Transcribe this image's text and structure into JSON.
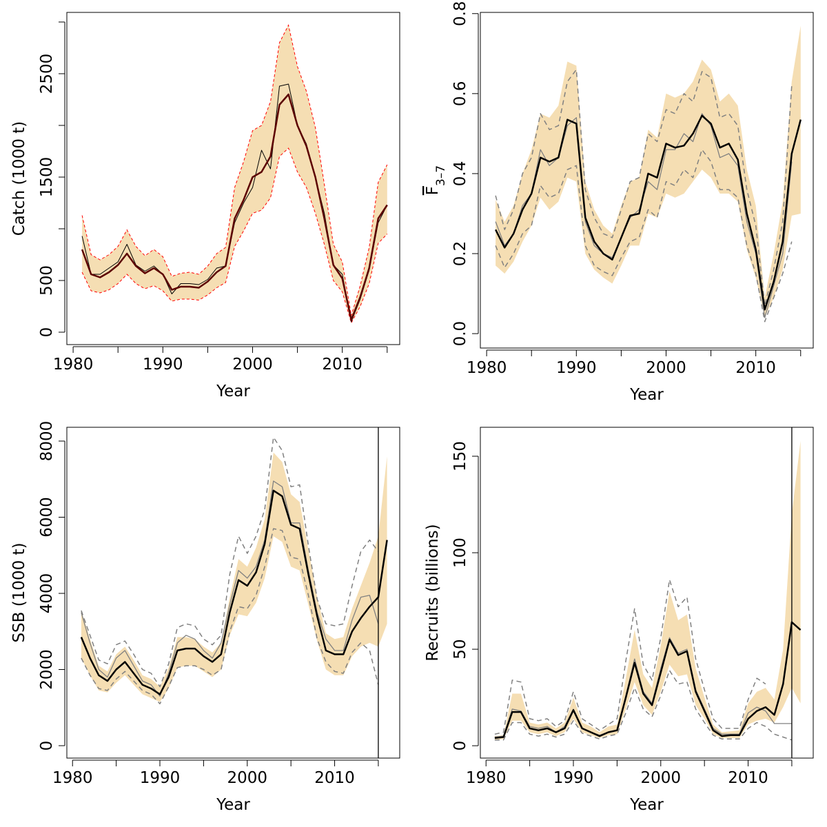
{
  "chart_data": [
    {
      "type": "line",
      "xlabel": "Year",
      "ylabel": "Catch (1000 t)",
      "x": [
        1981,
        1982,
        1983,
        1984,
        1985,
        1986,
        1987,
        1988,
        1989,
        1990,
        1991,
        1992,
        1993,
        1994,
        1995,
        1996,
        1997,
        1998,
        1999,
        2000,
        2001,
        2002,
        2003,
        2004,
        2005,
        2006,
        2007,
        2008,
        2009,
        2010,
        2011,
        2012,
        2013,
        2014,
        2015
      ],
      "xlim": [
        1979.3,
        2016.4
      ],
      "ylim": [
        -120,
        3093
      ],
      "xticks": [
        1980,
        1990,
        2000,
        2010
      ],
      "xminor": [
        1985,
        1995,
        2005,
        2015
      ],
      "yticks": [
        0,
        500,
        1500,
        2500
      ],
      "yminor": [
        1000,
        2000,
        3000
      ],
      "band": {
        "color": "#f5deb3",
        "border": "#ff0000",
        "upper": [
          1130,
          750,
          700,
          750,
          830,
          990,
          830,
          740,
          800,
          730,
          540,
          570,
          580,
          560,
          640,
          760,
          820,
          1400,
          1650,
          1950,
          2000,
          2230,
          2800,
          2970,
          2570,
          2330,
          1980,
          1430,
          850,
          680,
          160,
          450,
          820,
          1450,
          1620
        ],
        "lower": [
          580,
          400,
          380,
          410,
          470,
          560,
          470,
          420,
          450,
          400,
          300,
          320,
          320,
          310,
          360,
          430,
          480,
          830,
          980,
          1150,
          1180,
          1300,
          1700,
          1780,
          1550,
          1400,
          1150,
          850,
          500,
          390,
          90,
          250,
          470,
          860,
          950
        ]
      },
      "series": [
        {
          "color": "#000000",
          "width": 1,
          "values": [
            930,
            560,
            560,
            620,
            680,
            850,
            650,
            590,
            640,
            560,
            370,
            470,
            470,
            460,
            510,
            620,
            640,
            1060,
            1250,
            1400,
            1760,
            1580,
            2380,
            2400,
            2000,
            1820,
            1500,
            1150,
            650,
            560,
            100,
            320,
            600,
            1060,
            1230
          ]
        },
        {
          "color": "#5c0000",
          "width": 2.5,
          "values": [
            800,
            560,
            530,
            580,
            650,
            760,
            640,
            570,
            620,
            560,
            410,
            440,
            440,
            430,
            490,
            580,
            640,
            1100,
            1280,
            1500,
            1550,
            1700,
            2200,
            2300,
            2000,
            1800,
            1500,
            1100,
            650,
            520,
            120,
            340,
            620,
            1100,
            1230
          ]
        }
      ]
    },
    {
      "type": "line",
      "xlabel": "Year",
      "ylabel": {
        "text": "F",
        "sub": "3–7"
      },
      "x": [
        1981,
        1982,
        1983,
        1984,
        1985,
        1986,
        1987,
        1988,
        1989,
        1990,
        1991,
        1992,
        1993,
        1994,
        1995,
        1996,
        1997,
        1998,
        1999,
        2000,
        2001,
        2002,
        2003,
        2004,
        2005,
        2006,
        2007,
        2008,
        2009,
        2010,
        2011,
        2012,
        2013,
        2014,
        2015
      ],
      "xlim": [
        1979.3,
        2016.4
      ],
      "ylim": [
        -0.036,
        0.803
      ],
      "xticks": [
        1980,
        1990,
        2000,
        2010
      ],
      "xminor": [
        1985,
        1995,
        2005,
        2015
      ],
      "yticks": [
        {
          "value": 0,
          "label": "0.0"
        },
        0.2,
        0.4,
        0.6,
        0.8
      ],
      "band": {
        "color": "#f5deb3",
        "upper": [
          0.335,
          0.28,
          0.32,
          0.4,
          0.46,
          0.55,
          0.54,
          0.57,
          0.68,
          0.67,
          0.38,
          0.31,
          0.27,
          0.25,
          0.32,
          0.38,
          0.39,
          0.51,
          0.49,
          0.6,
          0.59,
          0.6,
          0.63,
          0.685,
          0.66,
          0.58,
          0.6,
          0.57,
          0.41,
          0.32,
          0.09,
          0.2,
          0.33,
          0.63,
          0.77
        ],
        "lower": [
          0.17,
          0.15,
          0.18,
          0.23,
          0.27,
          0.34,
          0.31,
          0.33,
          0.39,
          0.38,
          0.2,
          0.16,
          0.14,
          0.125,
          0.17,
          0.22,
          0.22,
          0.3,
          0.29,
          0.35,
          0.34,
          0.35,
          0.38,
          0.41,
          0.39,
          0.35,
          0.35,
          0.33,
          0.21,
          0.14,
          0.04,
          0.09,
          0.16,
          0.295,
          0.3
        ]
      },
      "series": [
        {
          "color": "#808080",
          "width": 1.5,
          "dash": true,
          "values": [
            0.345,
            0.26,
            0.31,
            0.4,
            0.44,
            0.55,
            0.51,
            0.52,
            0.63,
            0.66,
            0.36,
            0.29,
            0.25,
            0.24,
            0.31,
            0.38,
            0.39,
            0.5,
            0.48,
            0.56,
            0.55,
            0.6,
            0.58,
            0.655,
            0.64,
            0.54,
            0.55,
            0.52,
            0.36,
            0.27,
            0.07,
            0.16,
            0.28,
            0.62,
            null
          ]
        },
        {
          "color": "#808080",
          "width": 1.5,
          "dash": true,
          "values": [
            0.22,
            0.165,
            0.2,
            0.25,
            0.27,
            0.37,
            0.34,
            0.35,
            0.41,
            0.42,
            0.22,
            0.17,
            0.155,
            0.145,
            0.19,
            0.23,
            0.24,
            0.31,
            0.29,
            0.38,
            0.37,
            0.41,
            0.39,
            0.46,
            0.43,
            0.36,
            0.36,
            0.34,
            0.22,
            0.15,
            0.03,
            0.09,
            0.15,
            0.23,
            null
          ]
        },
        {
          "color": "#808080",
          "width": 1.3,
          "values": [
            0.28,
            0.22,
            0.25,
            0.32,
            0.35,
            0.46,
            0.42,
            0.44,
            0.52,
            0.54,
            0.28,
            0.22,
            0.2,
            0.19,
            0.24,
            0.29,
            0.31,
            0.38,
            0.36,
            0.46,
            0.46,
            0.5,
            0.48,
            0.55,
            0.52,
            0.44,
            0.45,
            0.42,
            0.28,
            0.2,
            0.04,
            0.12,
            0.2,
            0.43,
            null
          ]
        },
        {
          "color": "#000000",
          "width": 2.5,
          "values": [
            0.26,
            0.215,
            0.25,
            0.31,
            0.35,
            0.44,
            0.43,
            0.44,
            0.535,
            0.525,
            0.29,
            0.23,
            0.2,
            0.185,
            0.24,
            0.295,
            0.3,
            0.4,
            0.39,
            0.475,
            0.465,
            0.47,
            0.5,
            0.545,
            0.525,
            0.465,
            0.475,
            0.435,
            0.3,
            0.21,
            0.06,
            0.13,
            0.23,
            0.45,
            0.535
          ]
        }
      ]
    },
    {
      "type": "line",
      "xlabel": "Year",
      "ylabel": "SSB (1000 t)",
      "x": [
        1981,
        1982,
        1983,
        1984,
        1985,
        1986,
        1987,
        1988,
        1989,
        1990,
        1991,
        1992,
        1993,
        1994,
        1995,
        1996,
        1997,
        1998,
        1999,
        2000,
        2001,
        2002,
        2003,
        2004,
        2005,
        2006,
        2007,
        2008,
        2009,
        2010,
        2011,
        2012,
        2013,
        2014,
        2015,
        2016
      ],
      "xlim": [
        1979.35,
        2017.45
      ],
      "ylim": [
        -326,
        8362
      ],
      "xticks": [
        1980,
        1990,
        2000,
        2010
      ],
      "xminor": [
        1985,
        1995,
        2005,
        2015
      ],
      "yticks": [
        0,
        2000,
        4000,
        6000,
        8000
      ],
      "vline": 2015,
      "band": {
        "color": "#f5deb3",
        "upper": [
          3550,
          2800,
          2100,
          1950,
          2400,
          2600,
          2250,
          1850,
          1750,
          1550,
          2050,
          2850,
          2850,
          2800,
          2600,
          2450,
          2700,
          3900,
          4900,
          4700,
          5200,
          5950,
          7700,
          7450,
          6600,
          6400,
          5150,
          3900,
          2950,
          2800,
          2850,
          3600,
          4200,
          4800,
          5500,
          7600
        ],
        "lower": [
          2300,
          1850,
          1450,
          1400,
          1650,
          1850,
          1600,
          1350,
          1250,
          1150,
          1500,
          2050,
          2100,
          2100,
          1950,
          1800,
          2000,
          2900,
          3450,
          3400,
          3750,
          4400,
          5500,
          5350,
          4700,
          4600,
          3700,
          2750,
          2000,
          1850,
          1850,
          2350,
          2600,
          2700,
          2600,
          3200
        ]
      },
      "series": [
        {
          "color": "#808080",
          "width": 1.5,
          "dash": true,
          "values": [
            3550,
            2900,
            2250,
            2150,
            2650,
            2750,
            2400,
            2000,
            1900,
            1550,
            2150,
            3100,
            3200,
            3150,
            2800,
            2650,
            2900,
            4500,
            5500,
            5050,
            5500,
            6200,
            8100,
            7750,
            6800,
            6850,
            5250,
            3850,
            3200,
            3150,
            3200,
            4200,
            5100,
            5400,
            5100,
            null
          ]
        },
        {
          "color": "#808080",
          "width": 1.5,
          "dash": true,
          "values": [
            2300,
            1850,
            1500,
            1450,
            1750,
            1950,
            1700,
            1450,
            1350,
            1100,
            1550,
            2050,
            2100,
            2100,
            2000,
            1850,
            2000,
            3000,
            3650,
            3600,
            3950,
            4700,
            5700,
            5650,
            4950,
            4900,
            3950,
            2800,
            2200,
            1950,
            1900,
            2450,
            2700,
            2500,
            1600,
            null
          ]
        },
        {
          "color": "#808080",
          "width": 1.3,
          "values": [
            3500,
            2700,
            2000,
            1800,
            2300,
            2500,
            2100,
            1700,
            1600,
            1300,
            1900,
            2700,
            2900,
            2800,
            2500,
            2300,
            2700,
            3700,
            4600,
            4400,
            4700,
            5400,
            6950,
            6800,
            5850,
            5850,
            4600,
            3500,
            2800,
            2500,
            2500,
            3300,
            3900,
            3950,
            3200,
            null
          ]
        },
        {
          "color": "#000000",
          "width": 2.5,
          "values": [
            2850,
            2300,
            1850,
            1700,
            2000,
            2200,
            1900,
            1600,
            1500,
            1350,
            1800,
            2500,
            2550,
            2550,
            2350,
            2200,
            2400,
            3500,
            4350,
            4200,
            4550,
            5300,
            6700,
            6550,
            5800,
            5700,
            4500,
            3400,
            2500,
            2400,
            2400,
            3000,
            3350,
            3650,
            3900,
            5400
          ]
        }
      ]
    },
    {
      "type": "line",
      "xlabel": "Year",
      "ylabel": "Recruits (billions)",
      "x": [
        1981,
        1982,
        1983,
        1984,
        1985,
        1986,
        1987,
        1988,
        1989,
        1990,
        1991,
        1992,
        1993,
        1994,
        1995,
        1996,
        1997,
        1998,
        1999,
        2000,
        2001,
        2002,
        2003,
        2004,
        2005,
        2006,
        2007,
        2008,
        2009,
        2010,
        2011,
        2012,
        2013,
        2014,
        2015,
        2016
      ],
      "xlim": [
        1979.35,
        2017.45
      ],
      "ylim": [
        -6.4,
        165
      ],
      "xticks": [
        1980,
        1990,
        2000,
        2010
      ],
      "xminor": [
        1985,
        1995,
        2005,
        2015
      ],
      "yticks": [
        0,
        50,
        100,
        150
      ],
      "vline": 2015,
      "band": {
        "color": "#f5deb3",
        "upper": [
          5,
          5.5,
          27,
          27,
          12,
          11,
          12,
          9,
          12,
          25,
          12,
          10,
          7,
          10,
          11,
          35,
          60,
          37,
          30,
          52,
          80,
          65,
          68,
          40,
          25,
          11,
          7,
          7.5,
          8,
          22,
          28,
          30,
          24,
          50,
          120,
          158
        ],
        "lower": [
          3,
          3.5,
          13,
          13,
          7,
          6,
          7,
          5,
          7,
          14,
          7,
          5.5,
          4,
          5.5,
          6,
          19,
          33,
          21,
          16,
          28,
          42,
          36,
          37,
          21,
          14,
          6,
          4,
          4,
          4,
          11,
          13,
          14,
          12,
          20,
          30,
          22
        ]
      },
      "series": [
        {
          "color": "#808080",
          "width": 1.5,
          "dash": true,
          "values": [
            6,
            7,
            34,
            33,
            14,
            13,
            14,
            10,
            13,
            28,
            14,
            11,
            8,
            11,
            14,
            44,
            71,
            42,
            34,
            56,
            86,
            72,
            77,
            45,
            29,
            14,
            9,
            9,
            9,
            24,
            35,
            32,
            null,
            null,
            null,
            null
          ]
        },
        {
          "color": "#808080",
          "width": 1.5,
          "dash": true,
          "values": [
            3,
            3,
            12,
            12,
            6,
            5,
            6,
            4.5,
            6,
            13,
            6.5,
            5,
            3.5,
            5,
            6,
            17,
            30,
            19,
            15,
            26,
            39,
            32,
            33,
            19,
            12,
            5.5,
            3.5,
            3.5,
            3.5,
            9,
            12,
            10,
            6,
            4.5,
            3,
            null
          ]
        },
        {
          "color": "#808080",
          "width": 1.3,
          "values": [
            4.5,
            5,
            19,
            18,
            10,
            9,
            10,
            7,
            10,
            19,
            9,
            7,
            5.5,
            7,
            8,
            26,
            45,
            28,
            22,
            40,
            56,
            48,
            50,
            29,
            19,
            9,
            6,
            6,
            6,
            17,
            20,
            18,
            11.5,
            11.5,
            11.5,
            null
          ]
        },
        {
          "color": "#000000",
          "width": 2.5,
          "values": [
            4,
            4.5,
            17.5,
            17.5,
            9,
            8,
            9,
            7,
            9,
            18.5,
            9,
            7,
            5,
            7,
            8,
            25,
            43,
            27,
            21,
            38,
            55,
            47,
            49,
            28,
            18,
            8,
            5,
            5.5,
            5.5,
            14,
            18,
            20,
            16,
            32,
            64,
            60
          ]
        }
      ]
    }
  ]
}
